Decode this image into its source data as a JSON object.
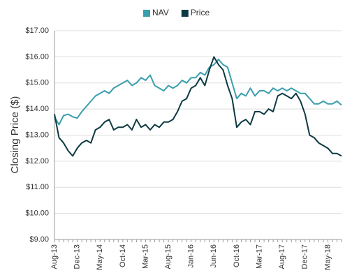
{
  "chart_data": {
    "type": "line",
    "y_label": "Closing Price ($)",
    "categories": [
      "Aug-13",
      null,
      null,
      null,
      null,
      "Dec-13",
      null,
      null,
      null,
      null,
      "May-14",
      null,
      null,
      null,
      null,
      "Oct-14",
      null,
      null,
      null,
      null,
      "Mar-15",
      null,
      null,
      null,
      null,
      "Aug-15",
      null,
      null,
      null,
      null,
      "Jan-16",
      null,
      null,
      null,
      null,
      "Jun-16",
      null,
      null,
      null,
      null,
      "Oct-16",
      null,
      null,
      null,
      null,
      "Mar-17",
      null,
      null,
      null,
      null,
      "Aug-17",
      null,
      null,
      null,
      null,
      "Dec-17",
      null,
      null,
      null,
      null,
      "May-18",
      null,
      null,
      null
    ],
    "series": [
      {
        "name": "NAV",
        "color": "#3a9fad",
        "values": [
          13.7,
          13.4,
          13.75,
          13.8,
          13.7,
          13.65,
          13.9,
          14.1,
          14.3,
          14.5,
          14.6,
          14.7,
          14.6,
          14.8,
          14.9,
          15.0,
          15.1,
          14.9,
          15.0,
          15.2,
          15.1,
          15.3,
          14.9,
          14.8,
          14.7,
          14.9,
          14.8,
          14.9,
          15.1,
          15.0,
          15.2,
          15.2,
          15.4,
          15.3,
          15.6,
          15.7,
          15.9,
          15.7,
          15.6,
          15.0,
          14.4,
          14.6,
          14.5,
          14.8,
          14.5,
          14.7,
          14.7,
          14.6,
          14.8,
          14.7,
          14.8,
          14.7,
          14.8,
          14.7,
          14.6,
          14.6,
          14.4,
          14.2,
          14.2,
          14.3,
          14.2,
          14.2,
          14.3,
          14.15
        ]
      },
      {
        "name": "Price",
        "color": "#0d3a42",
        "values": [
          13.8,
          12.9,
          12.7,
          12.4,
          12.2,
          12.5,
          12.7,
          12.8,
          12.7,
          13.2,
          13.3,
          13.5,
          13.6,
          13.2,
          13.3,
          13.3,
          13.4,
          13.2,
          13.6,
          13.3,
          13.4,
          13.2,
          13.4,
          13.3,
          13.5,
          13.5,
          13.6,
          13.9,
          14.3,
          14.4,
          14.8,
          14.9,
          15.2,
          14.9,
          15.5,
          16.0,
          15.7,
          15.5,
          14.9,
          14.4,
          13.3,
          13.5,
          13.6,
          13.4,
          13.9,
          13.9,
          13.8,
          14.0,
          13.9,
          14.5,
          14.6,
          14.5,
          14.4,
          14.6,
          14.3,
          13.8,
          13.0,
          12.9,
          12.7,
          12.6,
          12.5,
          12.3,
          12.3,
          12.2
        ]
      }
    ],
    "ylim": [
      9,
      17
    ],
    "yticks": [
      {
        "value": 9,
        "label": "$9.00"
      },
      {
        "value": 10,
        "label": "$10.00"
      },
      {
        "value": 11,
        "label": "$11.00"
      },
      {
        "value": 12,
        "label": "$12.00"
      },
      {
        "value": 13,
        "label": "$13.00"
      },
      {
        "value": 14,
        "label": "$14.00"
      },
      {
        "value": 15,
        "label": "$15.00"
      },
      {
        "value": 16,
        "label": "$16.00"
      },
      {
        "value": 17,
        "label": "$17.00"
      }
    ],
    "grid": true,
    "legend": "top"
  }
}
